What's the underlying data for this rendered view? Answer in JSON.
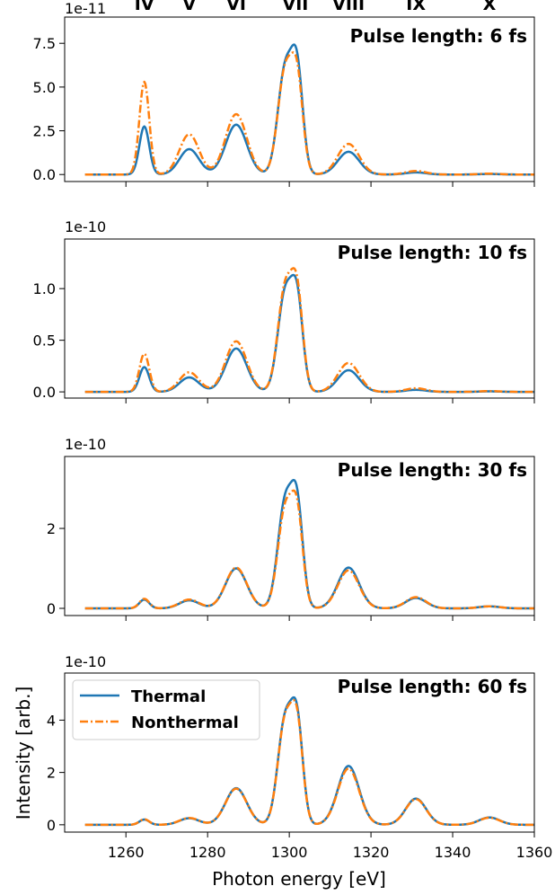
{
  "chart_data": [
    {
      "type": "line",
      "exponent_label": "1e-11",
      "annotation": "Pulse length: 6 fs",
      "peak_labels": [
        "IV",
        "V",
        "VI",
        "VII",
        "VIII",
        "IX",
        "X"
      ],
      "peak_label_x": [
        1264.5,
        1275.5,
        1287,
        1301.5,
        1314.5,
        1331,
        1349
      ],
      "xlim": [
        1245,
        1360
      ],
      "ylim": [
        -0.4,
        9.0
      ],
      "y_ticks": [
        0.0,
        2.5,
        5.0,
        7.5
      ],
      "y_tick_labels": [
        "0.0",
        "2.5",
        "5.0",
        "7.5"
      ],
      "x_ticks": [
        1260,
        1280,
        1300,
        1320,
        1340,
        1360
      ],
      "x_tick_labels": [],
      "xlabel": "",
      "ylabel": "",
      "series": [
        {
          "name": "Thermal",
          "style": "solid",
          "color": "#1f77b4",
          "peaks": [
            [
              1264.5,
              2.75,
              1.2
            ],
            [
              1275.5,
              1.45,
              2.4
            ],
            [
              1287,
              2.85,
              2.6
            ],
            [
              1299,
              6.0,
              1.8
            ],
            [
              1302,
              5.4,
              1.4
            ],
            [
              1314.5,
              1.3,
              2.6
            ],
            [
              1331,
              0.12,
              2.5
            ],
            [
              1349,
              0.03,
              2.5
            ]
          ]
        },
        {
          "name": "Nonthermal",
          "style": "dashdot",
          "color": "#ff7f0e",
          "peaks": [
            [
              1264.5,
              5.3,
              1.2
            ],
            [
              1275.5,
              2.3,
              2.4
            ],
            [
              1287,
              3.45,
              2.6
            ],
            [
              1299,
              5.9,
              1.8
            ],
            [
              1302,
              4.9,
              1.4
            ],
            [
              1314.5,
              1.75,
              2.6
            ],
            [
              1331,
              0.2,
              2.5
            ],
            [
              1349,
              0.05,
              2.5
            ]
          ]
        }
      ]
    },
    {
      "type": "line",
      "exponent_label": "1e-10",
      "annotation": "Pulse length: 10 fs",
      "xlim": [
        1245,
        1360
      ],
      "ylim": [
        -0.06,
        1.48
      ],
      "y_ticks": [
        0.0,
        0.5,
        1.0
      ],
      "y_tick_labels": [
        "0.0",
        "0.5",
        "1.0"
      ],
      "x_ticks": [
        1260,
        1280,
        1300,
        1320,
        1340,
        1360
      ],
      "x_tick_labels": [],
      "xlabel": "",
      "ylabel": "",
      "series": [
        {
          "name": "Thermal",
          "style": "solid",
          "color": "#1f77b4",
          "peaks": [
            [
              1264.5,
              0.24,
              1.2
            ],
            [
              1275.5,
              0.14,
              2.4
            ],
            [
              1287,
              0.42,
              2.6
            ],
            [
              1299,
              0.95,
              1.8
            ],
            [
              1302,
              0.8,
              1.4
            ],
            [
              1314.5,
              0.21,
              2.6
            ],
            [
              1331,
              0.02,
              2.5
            ],
            [
              1349,
              0.005,
              2.5
            ]
          ]
        },
        {
          "name": "Nonthermal",
          "style": "dashdot",
          "color": "#ff7f0e",
          "peaks": [
            [
              1264.5,
              0.37,
              1.2
            ],
            [
              1275.5,
              0.19,
              2.4
            ],
            [
              1287,
              0.49,
              2.6
            ],
            [
              1299,
              1.0,
              1.8
            ],
            [
              1302,
              0.85,
              1.4
            ],
            [
              1314.5,
              0.28,
              2.6
            ],
            [
              1331,
              0.035,
              2.5
            ],
            [
              1349,
              0.008,
              2.5
            ]
          ]
        }
      ]
    },
    {
      "type": "line",
      "exponent_label": "1e-10",
      "annotation": "Pulse length: 30 fs",
      "xlim": [
        1245,
        1360
      ],
      "ylim": [
        -0.18,
        3.8
      ],
      "y_ticks": [
        0,
        2
      ],
      "y_tick_labels": [
        "0",
        "2"
      ],
      "x_ticks": [
        1260,
        1280,
        1300,
        1320,
        1340,
        1360
      ],
      "x_tick_labels": [],
      "xlabel": "",
      "ylabel": "",
      "series": [
        {
          "name": "Thermal",
          "style": "solid",
          "color": "#1f77b4",
          "peaks": [
            [
              1264.5,
              0.22,
              1.2
            ],
            [
              1275.5,
              0.2,
              2.4
            ],
            [
              1287,
              1.0,
              2.6
            ],
            [
              1299,
              2.65,
              1.8
            ],
            [
              1302,
              2.3,
              1.4
            ],
            [
              1314.5,
              1.02,
              2.6
            ],
            [
              1331,
              0.26,
              2.5
            ],
            [
              1349,
              0.05,
              2.5
            ]
          ]
        },
        {
          "name": "Nonthermal",
          "style": "dashdot",
          "color": "#ff7f0e",
          "peaks": [
            [
              1264.5,
              0.24,
              1.2
            ],
            [
              1275.5,
              0.22,
              2.4
            ],
            [
              1287,
              1.02,
              2.6
            ],
            [
              1299,
              2.45,
              1.8
            ],
            [
              1302,
              2.1,
              1.4
            ],
            [
              1314.5,
              0.95,
              2.6
            ],
            [
              1331,
              0.28,
              2.5
            ],
            [
              1349,
              0.05,
              2.5
            ]
          ]
        }
      ]
    },
    {
      "type": "line",
      "exponent_label": "1e-10",
      "annotation": "Pulse length: 60 fs",
      "xlim": [
        1245,
        1360
      ],
      "ylim": [
        -0.28,
        5.8
      ],
      "y_ticks": [
        0,
        2,
        4
      ],
      "y_tick_labels": [
        "0",
        "2",
        "4"
      ],
      "x_ticks": [
        1260,
        1280,
        1300,
        1320,
        1340,
        1360
      ],
      "x_tick_labels": [
        "1260",
        "1280",
        "1300",
        "1320",
        "1340",
        "1360"
      ],
      "xlabel": "Photon energy [eV]",
      "ylabel": "Intensity [arb.]",
      "legend": {
        "position": "upper-left",
        "entries": [
          "Thermal",
          "Nonthermal"
        ]
      },
      "series": [
        {
          "name": "Thermal",
          "style": "solid",
          "color": "#1f77b4",
          "peaks": [
            [
              1264.5,
              0.2,
              1.2
            ],
            [
              1275.5,
              0.25,
              2.4
            ],
            [
              1287,
              1.4,
              2.6
            ],
            [
              1299,
              4.0,
              1.8
            ],
            [
              1302,
              3.5,
              1.4
            ],
            [
              1314.5,
              2.25,
              2.6
            ],
            [
              1331,
              1.0,
              2.5
            ],
            [
              1349,
              0.28,
              2.5
            ]
          ]
        },
        {
          "name": "Nonthermal",
          "style": "dashdot",
          "color": "#ff7f0e",
          "peaks": [
            [
              1264.5,
              0.21,
              1.2
            ],
            [
              1275.5,
              0.26,
              2.4
            ],
            [
              1287,
              1.38,
              2.6
            ],
            [
              1299,
              3.95,
              1.8
            ],
            [
              1302,
              3.4,
              1.4
            ],
            [
              1314.5,
              2.15,
              2.6
            ],
            [
              1331,
              0.98,
              2.5
            ],
            [
              1349,
              0.27,
              2.5
            ]
          ]
        }
      ]
    }
  ]
}
